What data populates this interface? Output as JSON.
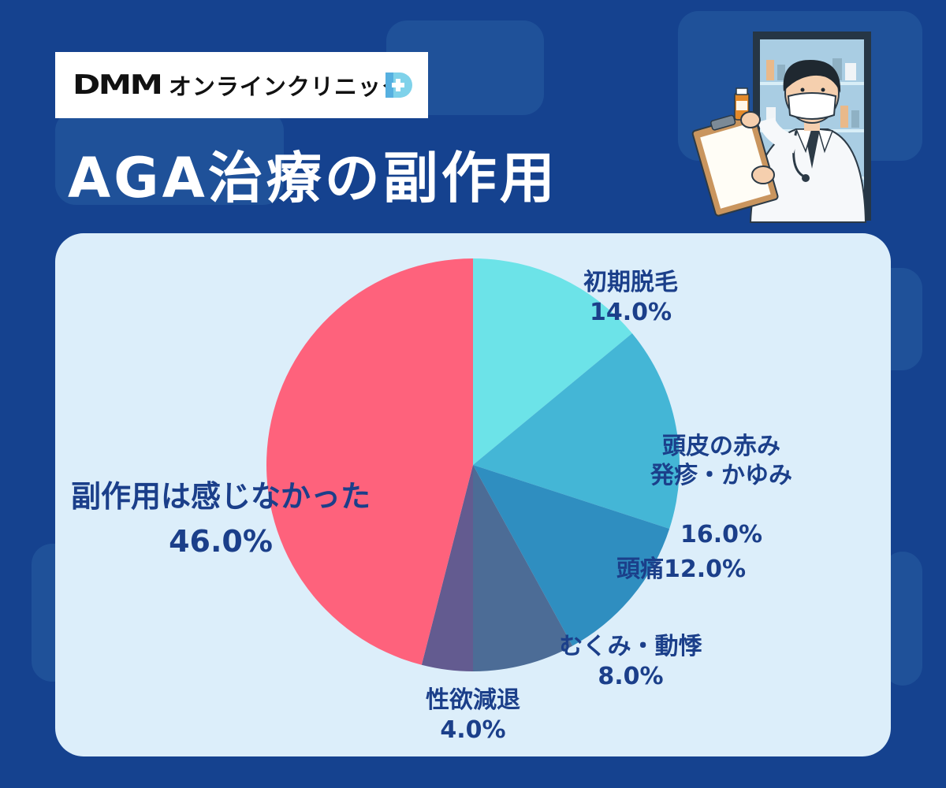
{
  "logo": {
    "brand": "DMM",
    "service": "オンラインクリニック"
  },
  "title": "AGA治療の副作用",
  "colors": {
    "background": "#15428f",
    "panel": "#dceefa",
    "label": "#1b3f8a"
  },
  "chart_data": {
    "type": "pie",
    "title": "",
    "slices": [
      {
        "label": "初期脱毛",
        "value": 14.0,
        "value_text": "14.0%",
        "color": "#6ce3e8"
      },
      {
        "label": "頭皮の赤み\n発疹・かゆみ",
        "value": 16.0,
        "value_text": "16.0%",
        "color": "#44b6d6"
      },
      {
        "label": "頭痛",
        "value": 12.0,
        "value_text": "12.0%",
        "color": "#2f8ec0"
      },
      {
        "label": "むくみ・動悸",
        "value": 8.0,
        "value_text": "8.0%",
        "color": "#4c6c96"
      },
      {
        "label": "性欲減退",
        "value": 4.0,
        "value_text": "4.0%",
        "color": "#635b90"
      },
      {
        "label": "副作用は感じなかった",
        "value": 46.0,
        "value_text": "46.0%",
        "color": "#fe627c"
      }
    ]
  }
}
